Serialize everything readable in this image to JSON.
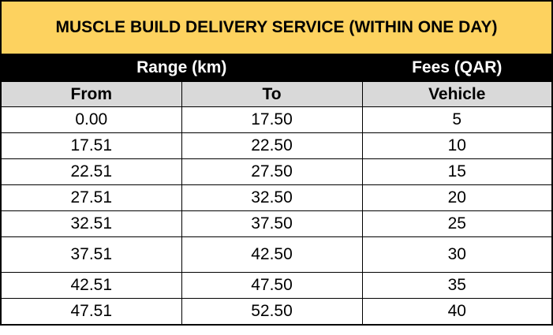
{
  "title": "MUSCLE BUILD DELIVERY SERVICE (WITHIN ONE DAY)",
  "group_headers": {
    "range": "Range (km)",
    "fees": "Fees (QAR)"
  },
  "column_headers": {
    "from": "From",
    "to": "To",
    "vehicle": "Vehicle"
  },
  "rows": [
    {
      "from": "0.00",
      "to": "17.50",
      "vehicle": "5"
    },
    {
      "from": "17.51",
      "to": "22.50",
      "vehicle": "10"
    },
    {
      "from": "22.51",
      "to": "27.50",
      "vehicle": "15"
    },
    {
      "from": "27.51",
      "to": "32.50",
      "vehicle": "20"
    },
    {
      "from": "32.51",
      "to": "37.50",
      "vehicle": "25"
    },
    {
      "from": "37.51",
      "to": "42.50",
      "vehicle": "30"
    },
    {
      "from": "42.51",
      "to": "47.50",
      "vehicle": "35"
    },
    {
      "from": "47.51",
      "to": "52.50",
      "vehicle": "40"
    }
  ],
  "colors": {
    "title_background": "#fdd25f",
    "group_header_background": "#000000",
    "column_header_background": "#d9d9d9"
  }
}
